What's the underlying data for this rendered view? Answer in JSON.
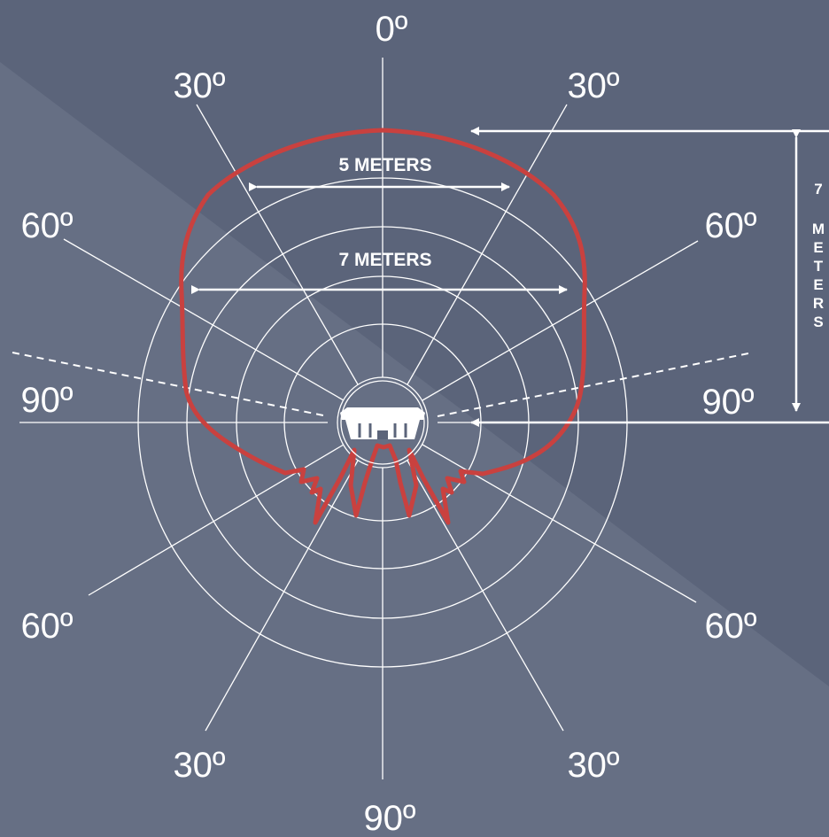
{
  "angles": {
    "top": "0º",
    "upper_left": "30º",
    "upper_right": "30º",
    "mid_left_upper": "60º",
    "mid_right_upper": "60º",
    "left": "90º",
    "right": "90º",
    "mid_left_lower": "60º",
    "mid_right_lower": "60º",
    "lower_left": "30º",
    "lower_right": "30º",
    "bottom": "90º"
  },
  "dimensions": {
    "inner_width": "5 METERS",
    "outer_width": "7 METERS",
    "vertical": [
      "7",
      "",
      "M",
      "E",
      "T",
      "E",
      "R",
      "S"
    ]
  },
  "colors": {
    "background": "#5b647a",
    "background_light": "#666f84",
    "grid": "#ffffff",
    "coverage_pattern": "#c9413f"
  },
  "icons": {
    "sensor": "detector-icon"
  }
}
